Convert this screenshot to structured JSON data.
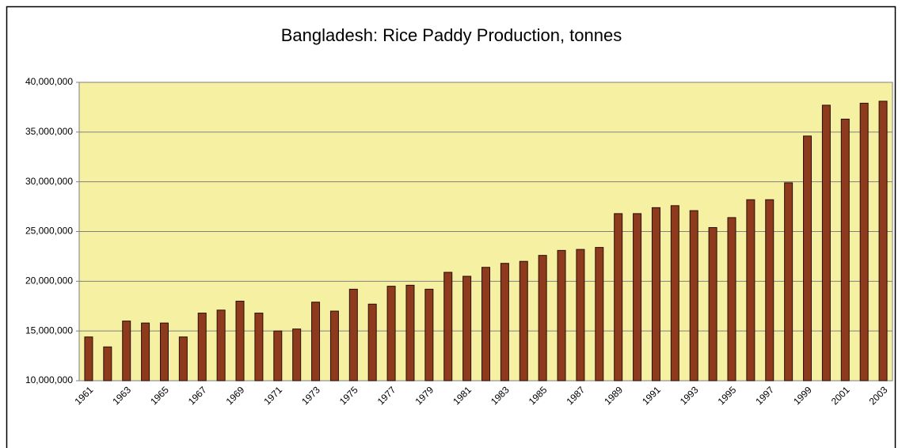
{
  "chart_data": {
    "type": "bar",
    "title": "Bangladesh: Rice Paddy Production, tonnes",
    "categories": [
      "1961",
      null,
      "1963",
      null,
      "1965",
      null,
      "1967",
      null,
      "1969",
      null,
      "1971",
      null,
      "1973",
      null,
      "1975",
      null,
      "1977",
      null,
      "1979",
      null,
      "1981",
      null,
      "1983",
      null,
      "1985",
      null,
      "1987",
      null,
      "1989",
      null,
      "1991",
      null,
      "1993",
      null,
      "1995",
      null,
      "1997",
      null,
      "1999",
      null,
      "2001",
      null,
      "2003"
    ],
    "values": [
      14400000,
      13400000,
      16000000,
      15800000,
      15800000,
      14400000,
      16800000,
      17100000,
      18000000,
      16800000,
      15000000,
      15200000,
      17900000,
      17000000,
      19200000,
      17700000,
      19500000,
      19600000,
      19200000,
      20900000,
      20500000,
      21400000,
      21800000,
      22000000,
      22600000,
      23100000,
      23200000,
      23400000,
      26800000,
      26800000,
      27400000,
      27600000,
      27100000,
      25400000,
      26400000,
      28200000,
      28200000,
      29900000,
      34600000,
      37700000,
      36300000,
      37900000,
      38100000
    ],
    "color": "#8e3a1c",
    "ylim": [
      10000000,
      40000000
    ],
    "yticks": [
      {
        "value": 10000000,
        "label": "10,000,000"
      },
      {
        "value": 15000000,
        "label": "15,000,000"
      },
      {
        "value": 20000000,
        "label": "20,000,000"
      },
      {
        "value": 25000000,
        "label": "25,000,000"
      },
      {
        "value": 30000000,
        "label": "30,000,000"
      },
      {
        "value": 35000000,
        "label": "35,000,000"
      },
      {
        "value": 40000000,
        "label": "40,000,000"
      }
    ],
    "grid": true
  }
}
